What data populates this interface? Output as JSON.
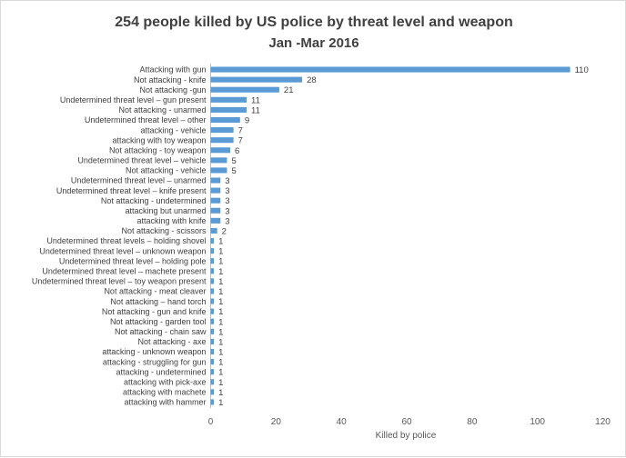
{
  "chart_data": {
    "type": "bar",
    "orientation": "horizontal",
    "title": "254 people killed by US police by threat level and weapon",
    "subtitle": "Jan -Mar 2016",
    "xlabel": "Killed by police",
    "ylabel": "",
    "xlim": [
      0,
      120
    ],
    "xticks": [
      0,
      20,
      40,
      60,
      80,
      100,
      120
    ],
    "grid": false,
    "data_labels": true,
    "bar_color": "#5b9bd5",
    "categories": [
      "Attacking with gun",
      "Not attacking - knife",
      "Not attacking -gun",
      "Undetermined threat level – gun present",
      "Not attacking  - unarmed",
      "Undetermined threat level – other",
      "attacking - vehicle",
      "attacking with toy weapon",
      "Not attacking - toy weapon",
      "Undetermined threat level – vehicle",
      "Not attacking - vehicle",
      "Undetermined threat level – unarmed",
      "Undetermined threat level – knife present",
      "Not attacking - undetermined",
      "attacking but unarmed",
      "attacking with knife",
      "Not attacking  - scissors",
      "Undetermined threat levels – holding shovel",
      "Undetermined threat level – unknown weapon",
      "Undetermined threat level – holding pole",
      "Undetermined threat level – machete present",
      "Undetermined threat level – toy weapon present",
      "Not attacking - meat cleaver",
      "Not attacking – hand torch",
      "Not attacking - gun and knife",
      "Not attacking - garden tool",
      "Not attacking - chain saw",
      "Not attacking - axe",
      "attacking - unknown weapon",
      "attacking - struggling for gun",
      "attacking - undetermined",
      "attacking with pick-axe",
      "attacking with machete",
      "attacking with hammer"
    ],
    "values": [
      110,
      28,
      21,
      11,
      11,
      9,
      7,
      7,
      6,
      5,
      5,
      3,
      3,
      3,
      3,
      3,
      2,
      1,
      1,
      1,
      1,
      1,
      1,
      1,
      1,
      1,
      1,
      1,
      1,
      1,
      1,
      1,
      1,
      1
    ]
  }
}
